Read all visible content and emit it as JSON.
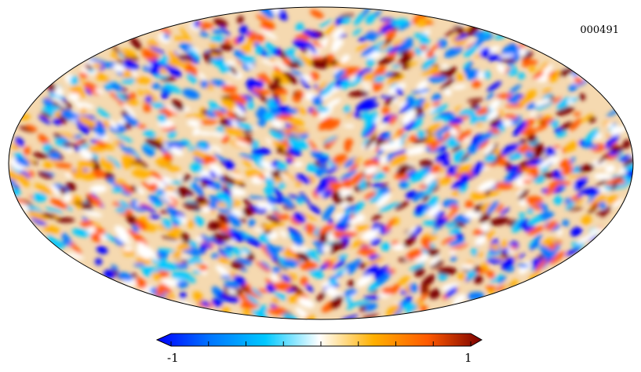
{
  "map": {
    "projection": "mollweide",
    "id_label": "000491",
    "colormap": [
      "#0000ff",
      "#0077ff",
      "#00c8ff",
      "#ffffff",
      "#ffb000",
      "#ff5a00",
      "#7a0000"
    ],
    "background": "#ffffff",
    "outline_color": "#000000"
  },
  "colorbar": {
    "min_label": "-1",
    "max_label": "1",
    "range": [
      -1,
      1
    ],
    "tick_count": 9
  }
}
